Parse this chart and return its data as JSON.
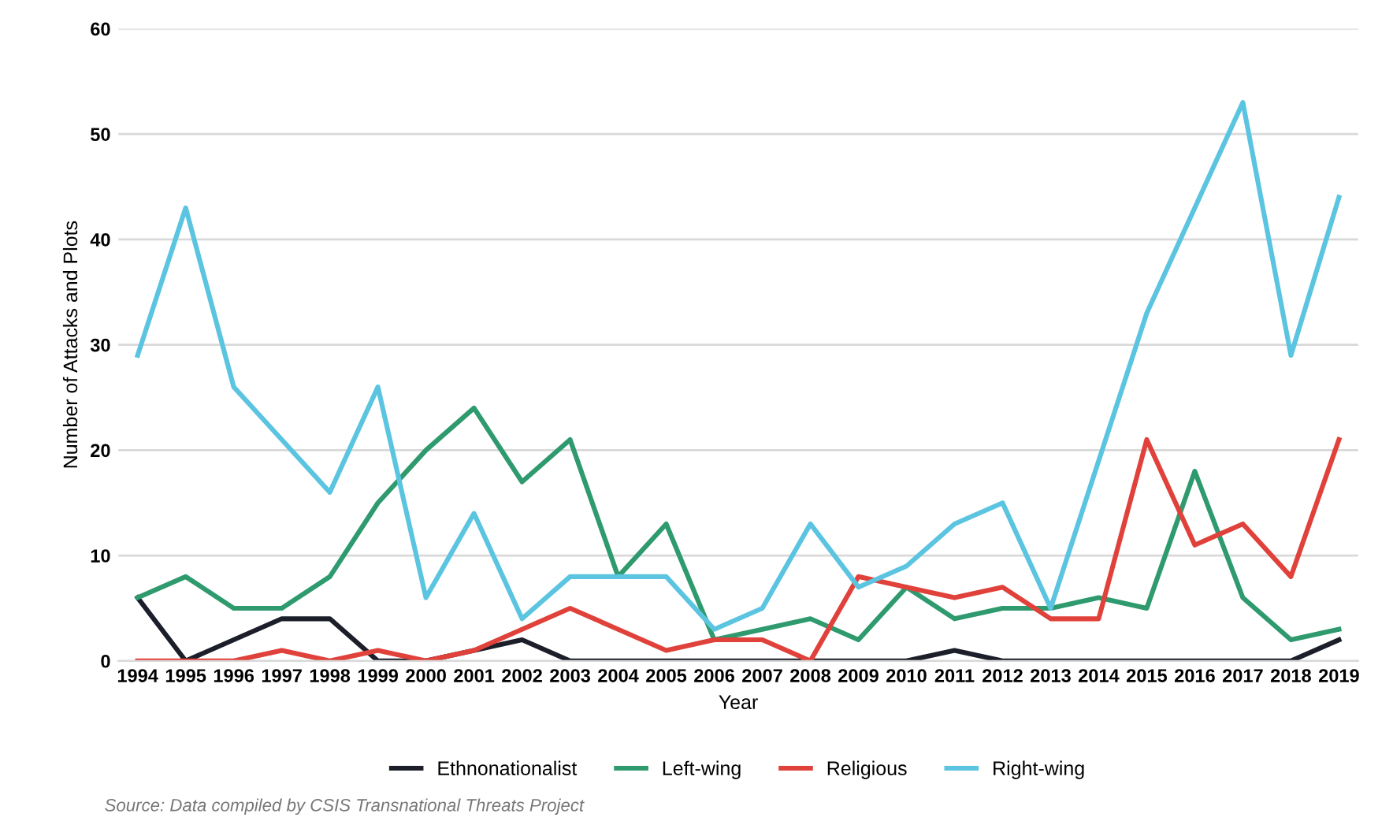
{
  "chart_data": {
    "type": "line",
    "xlabel": "Year",
    "ylabel": "Number of Attacks and Plots",
    "categories": [
      "1994",
      "1995",
      "1996",
      "1997",
      "1998",
      "1999",
      "2000",
      "2001",
      "2002",
      "2003",
      "2004",
      "2005",
      "2006",
      "2007",
      "2008",
      "2009",
      "2010",
      "2011",
      "2012",
      "2013",
      "2014",
      "2015",
      "2016",
      "2017",
      "2018",
      "2019"
    ],
    "series": [
      {
        "name": "Ethnonationalist",
        "color": "#1c1f2a",
        "values": [
          6,
          0,
          2,
          4,
          4,
          0,
          0,
          1,
          2,
          0,
          0,
          0,
          0,
          0,
          0,
          0,
          0,
          1,
          0,
          0,
          0,
          0,
          0,
          0,
          0,
          2
        ]
      },
      {
        "name": "Left-wing",
        "color": "#2e9a6e",
        "values": [
          6,
          8,
          5,
          5,
          8,
          15,
          20,
          24,
          17,
          21,
          8,
          13,
          2,
          3,
          4,
          2,
          7,
          4,
          5,
          5,
          6,
          5,
          18,
          6,
          2,
          3
        ]
      },
      {
        "name": "Religious",
        "color": "#e0413a",
        "values": [
          0,
          0,
          0,
          1,
          0,
          1,
          0,
          1,
          3,
          5,
          3,
          1,
          2,
          2,
          0,
          8,
          7,
          6,
          7,
          4,
          4,
          21,
          11,
          13,
          8,
          21
        ]
      },
      {
        "name": "Right-wing",
        "color": "#5bc4e0",
        "values": [
          29,
          43,
          26,
          21,
          16,
          26,
          6,
          14,
          4,
          8,
          8,
          8,
          3,
          5,
          13,
          7,
          9,
          13,
          15,
          5,
          19,
          33,
          43,
          53,
          29,
          44
        ]
      }
    ],
    "ylim": [
      0,
      60
    ],
    "yticks": [
      0,
      10,
      20,
      30,
      40,
      50,
      60
    ],
    "grid": "y",
    "legend": "bottom",
    "marker": "none",
    "line_style": "solid",
    "annotations": [
      "Source: Data compiled by CSIS Transnational Threats Project"
    ]
  }
}
